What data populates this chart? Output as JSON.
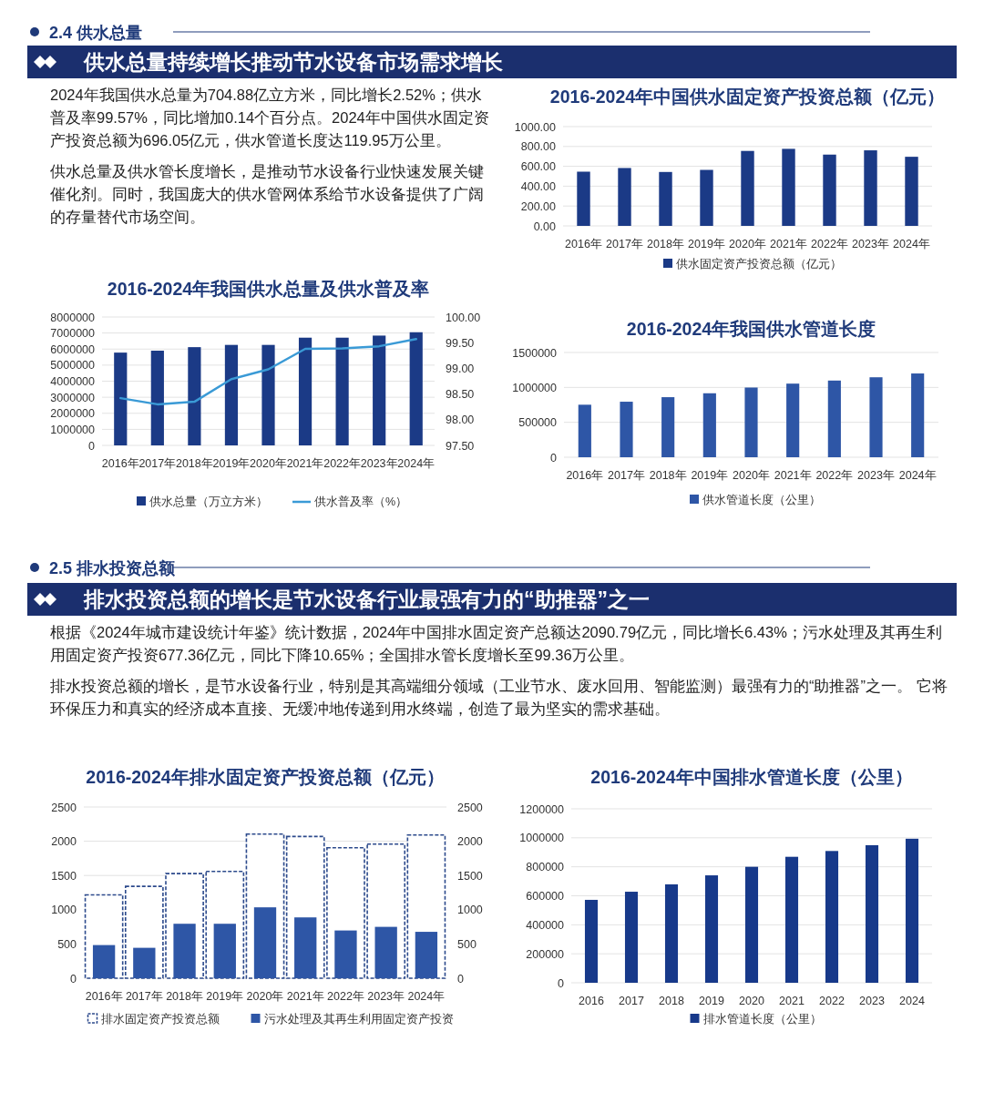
{
  "chart_data": [
    {
      "type": "other",
      "title": "2.4 供水总量",
      "subtitle": "供水总量持续增长推动节水设备市场需求增长",
      "annotations": [
        "2024年我国供水总量为704.88亿立方米，同比增长2.52%；供水普及率99.57%，同比增加0.14个百分点。2024年中国供水固定资产投资总额为696.05亿元，供水管道长度达119.95万公里。",
        "供水总量及供水管长度增长，是推动节水设备行业快速发展关键催化剂。同时，我国庞大的供水管网体系给节水设备提供了广阔的存量替代市场空间。"
      ]
    },
    {
      "type": "bar",
      "title": "2016-2024年中国供水固定资产投资总额（亿元）",
      "categories": [
        "2016年",
        "2017年",
        "2018年",
        "2019年",
        "2020年",
        "2021年",
        "2022年",
        "2023年",
        "2024年"
      ],
      "series": [
        {
          "name": "供水固定资产投资总额（亿元）",
          "color": "#1b3a86",
          "values": [
            546,
            583,
            543,
            564,
            755,
            776,
            718,
            761,
            696.05
          ]
        }
      ],
      "ylim": [
        0,
        1000
      ],
      "yticks": [
        {
          "value": 0,
          "label": "0.00"
        },
        {
          "value": 200,
          "label": "200.00"
        },
        {
          "value": 400,
          "label": "400.00"
        },
        {
          "value": 600,
          "label": "600.00"
        },
        {
          "value": 800,
          "label": "800.00"
        },
        {
          "value": 1000,
          "label": "1000.00"
        }
      ],
      "grid": "y",
      "legend": "bottom"
    },
    {
      "type": "bar",
      "title": "2016-2024年我国供水总量及供水普及率",
      "categories": [
        "2016年",
        "2017年",
        "2018年",
        "2019年",
        "2020年",
        "2021年",
        "2022年",
        "2023年",
        "2024年"
      ],
      "series": [
        {
          "name": "供水总量（万立方米）",
          "color": "#1b3a86",
          "values": [
            5780000,
            5900000,
            6120000,
            6260000,
            6260000,
            6710000,
            6710000,
            6840000,
            7048800
          ]
        },
        {
          "name": "供水普及率（%）",
          "type": "line",
          "axis": "y2",
          "color": "#3a9ad6",
          "values": [
            98.42,
            98.3,
            98.35,
            98.79,
            98.98,
            99.38,
            99.39,
            99.43,
            99.57
          ]
        }
      ],
      "ylim": [
        0,
        8000000
      ],
      "yticks": [
        0,
        1000000,
        2000000,
        3000000,
        4000000,
        5000000,
        6000000,
        7000000,
        8000000
      ],
      "y2lim": [
        97.5,
        100
      ],
      "y2ticks": [
        {
          "value": 97.5,
          "label": "97.50"
        },
        {
          "value": 98,
          "label": "98.00"
        },
        {
          "value": 98.5,
          "label": "98.50"
        },
        {
          "value": 99,
          "label": "99.00"
        },
        {
          "value": 99.5,
          "label": "99.50"
        },
        {
          "value": 100,
          "label": "100.00"
        }
      ],
      "grid": "y",
      "legend": "bottom"
    },
    {
      "type": "bar",
      "title": "2016-2024年我国供水管道长度",
      "categories": [
        "2016年",
        "2017年",
        "2018年",
        "2019年",
        "2020年",
        "2021年",
        "2022年",
        "2023年",
        "2024年"
      ],
      "series": [
        {
          "name": "供水管道长度（公里）",
          "color": "#2e56a6",
          "values": [
            752000,
            795000,
            860000,
            916000,
            998000,
            1054000,
            1098000,
            1145000,
            1199500
          ]
        }
      ],
      "ylim": [
        0,
        1500000
      ],
      "yticks": [
        0,
        500000,
        1000000,
        1500000
      ],
      "grid": "y",
      "legend": "bottom"
    },
    {
      "type": "other",
      "title": "2.5 排水投资总额",
      "subtitle": "排水投资总额的增长是节水设备行业最强有力的“助推器”之一",
      "annotations": [
        "根据《2024年城市建设统计年鉴》统计数据，2024年中国排水固定资产总额达2090.79亿元，同比增长6.43%；污水处理及其再生利用固定资产投资677.36亿元，同比下降10.65%；全国排水管长度增长至99.36万公里。",
        "排水投资总额的增长，是节水设备行业，特别是其高端细分领域（工业节水、废水回用、智能监测）最强有力的“助推器”之一。 它将环保压力和真实的经济成本直接、无缓冲地传递到用水终端，创造了最为坚实的需求基础。"
      ]
    },
    {
      "type": "bar",
      "title": "2016-2024年排水固定资产投资总额（亿元）",
      "categories": [
        "2016年",
        "2017年",
        "2018年",
        "2019年",
        "2020年",
        "2021年",
        "2022年",
        "2023年",
        "2024年"
      ],
      "series": [
        {
          "name": "排水固定资产投资总额",
          "color": "#2c4a8c",
          "line_style": "dashed",
          "values": [
            1217,
            1341,
            1528,
            1559,
            2105,
            2069,
            1905,
            1958,
            2090.79
          ]
        },
        {
          "name": "污水处理及其再生利用固定资产投资",
          "color": "#2e56a6",
          "axis": "y2",
          "values": [
            484,
            444,
            795,
            795,
            1035,
            888,
            697,
            750,
            677.36
          ]
        }
      ],
      "ylim": [
        0,
        2500
      ],
      "yticks": [
        0,
        500,
        1000,
        1500,
        2000,
        2500
      ],
      "y2lim": [
        0,
        2500
      ],
      "y2ticks": [
        0,
        500,
        1000,
        1500,
        2000,
        2500
      ],
      "grid": "y",
      "legend": "bottom"
    },
    {
      "type": "bar",
      "title": "2016-2024年中国排水管道长度（公里）",
      "categories": [
        "2016",
        "2017",
        "2018",
        "2019",
        "2020",
        "2021",
        "2022",
        "2023",
        "2024"
      ],
      "series": [
        {
          "name": "排水管道长度（公里）",
          "color": "#17398a",
          "values": [
            572000,
            628000,
            679000,
            741000,
            800000,
            869000,
            909000,
            949000,
            993600
          ]
        }
      ],
      "ylim": [
        0,
        1200000
      ],
      "yticks": [
        0,
        200000,
        400000,
        600000,
        800000,
        1000000,
        1200000
      ],
      "grid": "y",
      "legend": "bottom"
    }
  ]
}
